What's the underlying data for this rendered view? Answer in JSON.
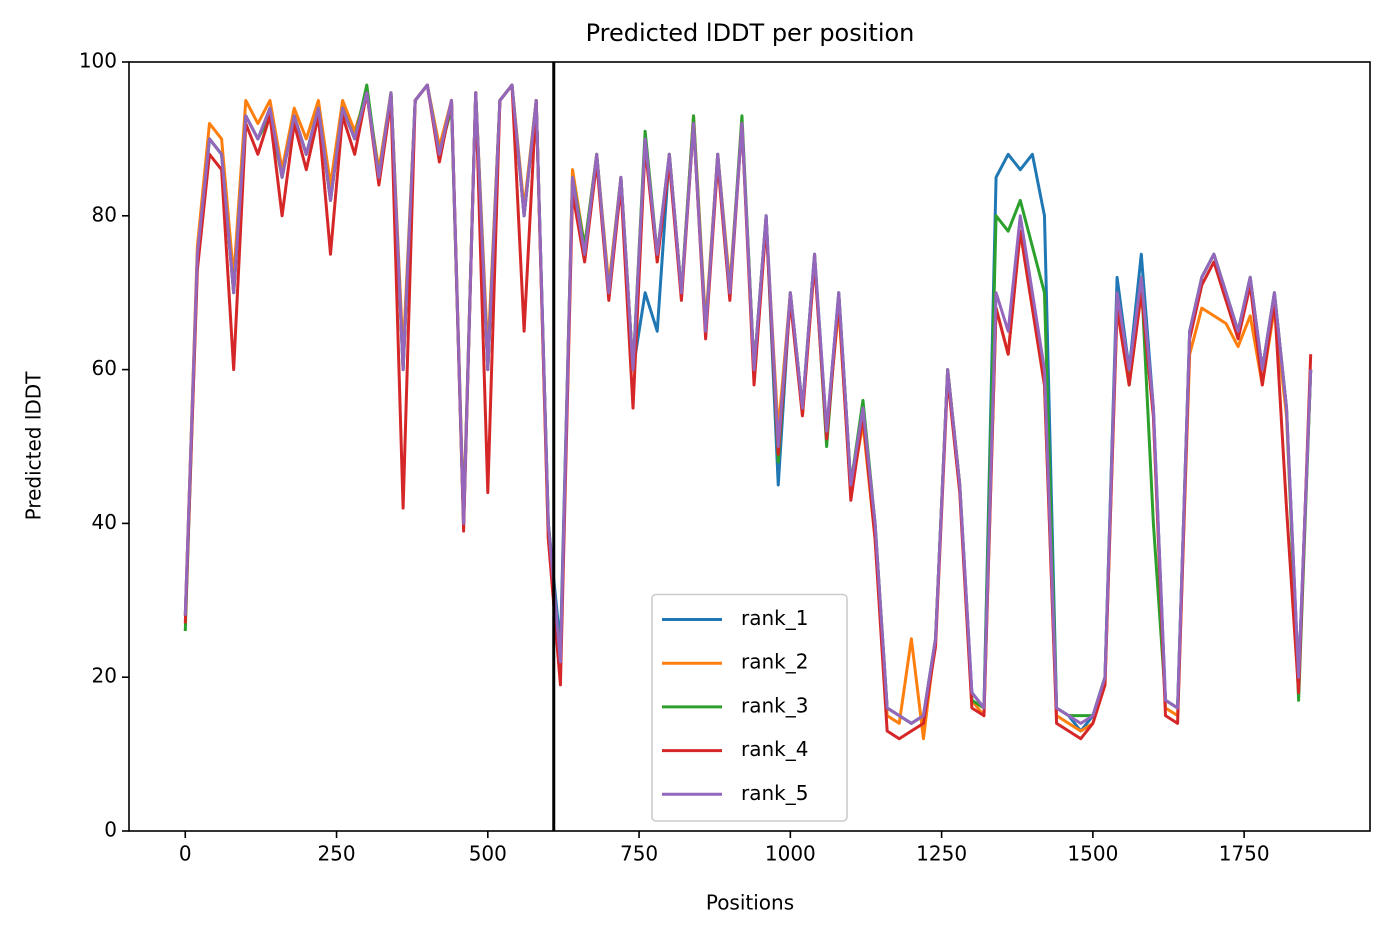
{
  "chart_data": {
    "type": "line",
    "title": "Predicted lDDT per position",
    "x_label": "Positions",
    "y_label": "Predicted lDDT",
    "x": [
      0,
      20,
      40,
      60,
      80,
      100,
      120,
      140,
      160,
      180,
      200,
      220,
      240,
      260,
      280,
      300,
      320,
      340,
      360,
      380,
      400,
      420,
      440,
      460,
      480,
      500,
      520,
      540,
      560,
      580,
      600,
      620,
      640,
      660,
      680,
      700,
      720,
      740,
      760,
      780,
      800,
      820,
      840,
      860,
      880,
      900,
      920,
      940,
      960,
      980,
      1000,
      1020,
      1040,
      1060,
      1080,
      1100,
      1120,
      1140,
      1160,
      1180,
      1200,
      1220,
      1240,
      1260,
      1280,
      1300,
      1320,
      1340,
      1360,
      1380,
      1400,
      1420,
      1440,
      1460,
      1480,
      1500,
      1520,
      1540,
      1560,
      1580,
      1600,
      1620,
      1640,
      1660,
      1680,
      1700,
      1720,
      1740,
      1760,
      1780,
      1800,
      1820,
      1840,
      1860
    ],
    "series": [
      {
        "name": "rank_1",
        "color": "#1f77b4",
        "values": [
          28,
          75,
          90,
          88,
          70,
          93,
          90,
          94,
          85,
          93,
          88,
          94,
          82,
          94,
          90,
          96,
          85,
          96,
          60,
          95,
          97,
          88,
          95,
          40,
          96,
          60,
          95,
          97,
          80,
          95,
          40,
          24,
          85,
          75,
          88,
          70,
          85,
          60,
          70,
          65,
          88,
          70,
          92,
          65,
          88,
          70,
          92,
          60,
          80,
          45,
          70,
          55,
          75,
          52,
          70,
          45,
          55,
          40,
          16,
          15,
          14,
          15,
          25,
          60,
          45,
          18,
          16,
          85,
          88,
          86,
          88,
          80,
          16,
          15,
          13,
          15,
          20,
          72,
          60,
          75,
          55,
          17,
          16,
          65,
          72,
          75,
          70,
          65,
          72,
          60,
          70,
          55,
          20,
          60
        ]
      },
      {
        "name": "rank_2",
        "color": "#ff7f0e",
        "values": [
          28,
          76,
          92,
          90,
          72,
          95,
          92,
          95,
          86,
          94,
          90,
          95,
          84,
          95,
          91,
          96,
          86,
          96,
          62,
          95,
          97,
          89,
          95,
          41,
          96,
          62,
          95,
          97,
          81,
          95,
          38,
          21,
          86,
          76,
          88,
          71,
          85,
          60,
          90,
          74,
          88,
          70,
          93,
          66,
          88,
          71,
          92,
          60,
          79,
          52,
          70,
          54,
          74,
          52,
          68,
          44,
          53,
          38,
          15,
          14,
          25,
          12,
          25,
          60,
          45,
          17,
          15,
          68,
          62,
          78,
          68,
          58,
          15,
          14,
          13,
          14,
          19,
          68,
          58,
          70,
          54,
          16,
          15,
          62,
          68,
          67,
          66,
          63,
          67,
          58,
          68,
          54,
          19,
          60
        ]
      },
      {
        "name": "rank_3",
        "color": "#2ca02c",
        "values": [
          26,
          74,
          90,
          88,
          70,
          93,
          90,
          93,
          85,
          93,
          88,
          94,
          82,
          94,
          90,
          97,
          85,
          96,
          60,
          95,
          97,
          88,
          94,
          40,
          96,
          60,
          95,
          97,
          80,
          95,
          40,
          22,
          85,
          76,
          88,
          70,
          85,
          60,
          91,
          75,
          88,
          70,
          93,
          65,
          88,
          70,
          93,
          60,
          80,
          48,
          70,
          55,
          75,
          50,
          70,
          45,
          56,
          40,
          16,
          15,
          14,
          15,
          25,
          60,
          45,
          17,
          16,
          80,
          78,
          82,
          76,
          70,
          16,
          15,
          15,
          15,
          20,
          70,
          58,
          72,
          40,
          17,
          16,
          65,
          72,
          75,
          70,
          65,
          72,
          60,
          70,
          55,
          17,
          60
        ]
      },
      {
        "name": "rank_4",
        "color": "#d62728",
        "values": [
          27,
          73,
          88,
          86,
          60,
          92,
          88,
          93,
          80,
          92,
          86,
          93,
          75,
          93,
          88,
          96,
          84,
          95,
          42,
          95,
          97,
          87,
          95,
          39,
          96,
          44,
          95,
          97,
          65,
          95,
          38,
          19,
          83,
          74,
          87,
          69,
          84,
          55,
          89,
          74,
          87,
          69,
          92,
          64,
          87,
          69,
          92,
          58,
          79,
          49,
          69,
          54,
          74,
          51,
          69,
          43,
          54,
          38,
          13,
          12,
          13,
          14,
          24,
          59,
          44,
          16,
          15,
          68,
          62,
          78,
          68,
          58,
          14,
          13,
          12,
          14,
          19,
          68,
          58,
          70,
          54,
          15,
          14,
          64,
          71,
          74,
          69,
          64,
          71,
          58,
          69,
          42,
          18,
          62
        ]
      },
      {
        "name": "rank_5",
        "color": "#9467bd",
        "values": [
          28,
          75,
          90,
          88,
          70,
          93,
          90,
          94,
          85,
          93,
          88,
          94,
          82,
          94,
          90,
          96,
          85,
          96,
          60,
          95,
          97,
          88,
          95,
          40,
          96,
          60,
          95,
          97,
          80,
          95,
          40,
          22,
          85,
          75,
          88,
          70,
          85,
          60,
          90,
          75,
          88,
          70,
          92,
          65,
          88,
          70,
          92,
          60,
          80,
          50,
          70,
          55,
          75,
          52,
          70,
          45,
          55,
          40,
          16,
          15,
          14,
          15,
          25,
          60,
          45,
          18,
          16,
          70,
          65,
          80,
          70,
          60,
          16,
          15,
          14,
          15,
          20,
          70,
          60,
          72,
          55,
          17,
          16,
          65,
          72,
          75,
          70,
          65,
          72,
          60,
          70,
          55,
          20,
          60
        ]
      }
    ],
    "vline_x": 609,
    "vline_color": "#000000",
    "xlim": [
      -93,
      1958
    ],
    "xticks": [
      0,
      250,
      500,
      750,
      1000,
      1250,
      1500,
      1750
    ],
    "ylim": [
      0,
      100
    ],
    "yticks": [
      0,
      20,
      40,
      60,
      80,
      100
    ],
    "grid": false,
    "legend": "lower center"
  }
}
